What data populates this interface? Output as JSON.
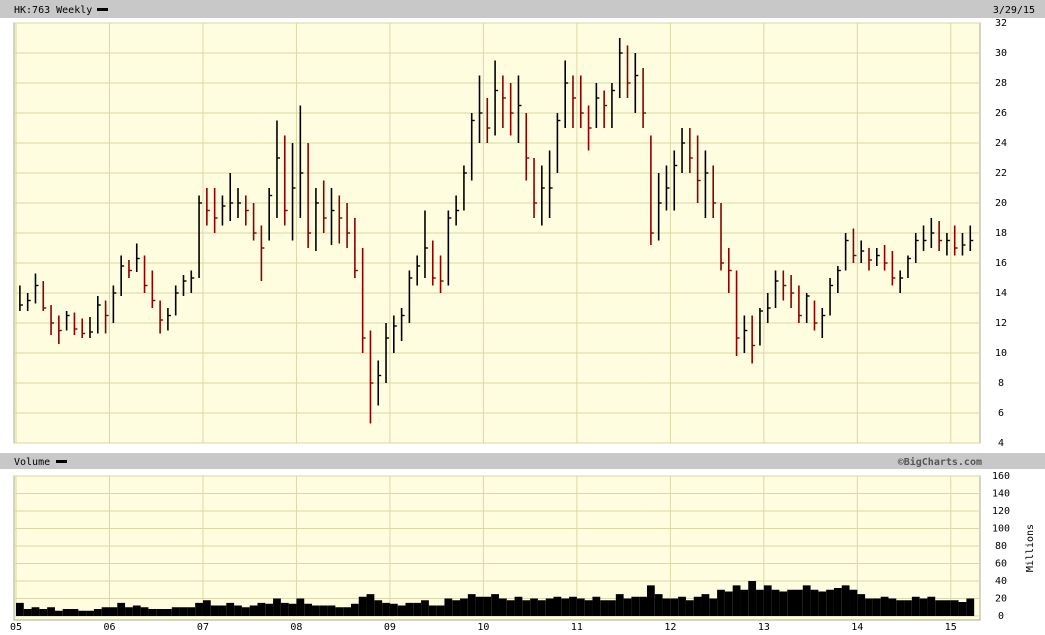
{
  "chart_data": [
    {
      "type": "hlc",
      "title": "HK:763 Weekly",
      "date": "3/29/15",
      "up_color": "#000000",
      "down_color": "#8b0000",
      "ylim": [
        4,
        32
      ],
      "yticks": [
        4,
        6,
        8,
        10,
        12,
        14,
        16,
        18,
        20,
        22,
        24,
        26,
        28,
        30,
        32
      ],
      "grid": true,
      "high": [
        14.5,
        14,
        15.3,
        14.8,
        13.2,
        12.5,
        12.8,
        12.7,
        12.3,
        12.4,
        13.8,
        13.5,
        14.5,
        16.5,
        16.2,
        17.3,
        16.5,
        15.5,
        13.5,
        13,
        14.5,
        15.2,
        15.5,
        20.5,
        21,
        21,
        20.5,
        22,
        21,
        20.5,
        20,
        18.5,
        21,
        25.5,
        24.5,
        24,
        26.5,
        24,
        21,
        21.5,
        21,
        20.5,
        20,
        19,
        17,
        11.5,
        9.5,
        12,
        12.5,
        13,
        15.5,
        16.5,
        19.5,
        17.5,
        16.5,
        19.5,
        20.5,
        22.5,
        26,
        28.5,
        27,
        29.5,
        28.5,
        28,
        28.5,
        26,
        23,
        22.5,
        23.5,
        26,
        29.5,
        28.5,
        28.5,
        26.5,
        28,
        27.5,
        28,
        31,
        30.5,
        30,
        29,
        24.5,
        22,
        22.5,
        23.5,
        25,
        25,
        24.5,
        23.5,
        22.5,
        20,
        17,
        15.5,
        12.5,
        12.5,
        13,
        14,
        15.5,
        15.5,
        15.2,
        14.5,
        14,
        13.5,
        13,
        15,
        15.8,
        18,
        18.3,
        17.5,
        17,
        17,
        17.2,
        16.8,
        15.5,
        16.5,
        18,
        18.5,
        19,
        18.8,
        18,
        18.5,
        18,
        18.5
      ],
      "low": [
        12.8,
        12.8,
        13.3,
        12.8,
        11.2,
        10.6,
        11.5,
        11.2,
        11,
        11,
        11.3,
        11.3,
        12,
        13.8,
        15,
        15.4,
        14,
        13,
        11.3,
        11.5,
        12.5,
        13.8,
        14,
        15,
        18.5,
        18,
        18.5,
        18.8,
        19,
        18.5,
        17.5,
        14.8,
        17.5,
        19,
        18.5,
        17.5,
        19,
        17,
        16.8,
        18,
        17.2,
        17.3,
        17,
        15,
        10,
        5.3,
        6.5,
        8,
        10,
        10.8,
        12,
        14.5,
        15,
        14.5,
        14,
        14.5,
        18.5,
        19.5,
        21.5,
        24,
        24,
        24.5,
        25,
        24.5,
        24,
        21.5,
        19,
        18.5,
        19,
        22,
        25,
        25,
        25,
        23.5,
        25,
        25,
        25,
        27,
        27,
        26,
        25,
        17.2,
        17.5,
        19.5,
        19.5,
        22,
        22,
        20,
        19,
        19,
        15.5,
        14,
        9.8,
        10,
        9.3,
        10.5,
        12,
        13,
        13.5,
        13,
        12,
        12,
        11.5,
        11,
        12.5,
        14,
        15.5,
        16,
        16,
        15.5,
        15.8,
        15.5,
        14.5,
        14,
        15,
        16,
        16.8,
        17,
        16.8,
        16.5,
        16.5,
        16.5,
        16.8
      ],
      "close": [
        13.2,
        13.5,
        14.5,
        13,
        12,
        11.5,
        12.5,
        11.6,
        11.3,
        11.4,
        13.2,
        12.5,
        14,
        15.8,
        15.5,
        16.3,
        14.5,
        13.5,
        12.2,
        12.5,
        14,
        14.8,
        15,
        20,
        19.5,
        19,
        19.8,
        20,
        20,
        19.5,
        18,
        17,
        20.5,
        23,
        19.5,
        21,
        22,
        18,
        20,
        19,
        19.5,
        19,
        18,
        15.5,
        11,
        8,
        8.5,
        11,
        11.8,
        12.5,
        15,
        15.8,
        17,
        15,
        14.8,
        19,
        19.5,
        22,
        25.5,
        26,
        25,
        27.5,
        27,
        26,
        26.5,
        23,
        20,
        21,
        21,
        25.5,
        28,
        27,
        26,
        25,
        27,
        26.5,
        27.5,
        30,
        28,
        28.5,
        26,
        18,
        20,
        21,
        22.5,
        24,
        23,
        21.5,
        22,
        20,
        16,
        15.5,
        11,
        11.5,
        10.5,
        12.8,
        13,
        14.8,
        14.5,
        14,
        12.5,
        13.8,
        12,
        12.5,
        14.5,
        15.5,
        17.5,
        16.5,
        16.8,
        16.2,
        16.5,
        16,
        15,
        15,
        16.3,
        17.5,
        17.5,
        18,
        17.5,
        17.5,
        17,
        17.2,
        17.5
      ]
    },
    {
      "type": "bar",
      "title": "Volume",
      "source": "©BigCharts.com",
      "y_label": "Millions",
      "color": "#000000",
      "ylim": [
        0,
        160
      ],
      "yticks": [
        0,
        20,
        40,
        60,
        80,
        100,
        120,
        140,
        160
      ],
      "grid": true,
      "categories": [
        "05",
        null,
        null,
        null,
        null,
        null,
        null,
        null,
        null,
        null,
        null,
        null,
        "06",
        null,
        null,
        null,
        null,
        null,
        null,
        null,
        null,
        null,
        null,
        null,
        "07",
        null,
        null,
        null,
        null,
        null,
        null,
        null,
        null,
        null,
        null,
        null,
        "08",
        null,
        null,
        null,
        null,
        null,
        null,
        null,
        null,
        null,
        null,
        null,
        "09",
        null,
        null,
        null,
        null,
        null,
        null,
        null,
        null,
        null,
        null,
        null,
        "10",
        null,
        null,
        null,
        null,
        null,
        null,
        null,
        null,
        null,
        null,
        null,
        "11",
        null,
        null,
        null,
        null,
        null,
        null,
        null,
        null,
        null,
        null,
        null,
        "12",
        null,
        null,
        null,
        null,
        null,
        null,
        null,
        null,
        null,
        null,
        null,
        "13",
        null,
        null,
        null,
        null,
        null,
        null,
        null,
        null,
        null,
        null,
        null,
        "14",
        null,
        null,
        null,
        null,
        null,
        null,
        null,
        null,
        null,
        null,
        null,
        "15",
        null,
        null
      ],
      "values": [
        15,
        8,
        10,
        8,
        10,
        6,
        8,
        8,
        6,
        6,
        8,
        10,
        10,
        15,
        10,
        12,
        10,
        8,
        8,
        8,
        10,
        10,
        10,
        15,
        18,
        12,
        12,
        15,
        12,
        10,
        12,
        15,
        14,
        20,
        15,
        14,
        20,
        14,
        12,
        12,
        12,
        10,
        10,
        14,
        22,
        25,
        18,
        15,
        14,
        12,
        15,
        15,
        18,
        12,
        12,
        20,
        18,
        20,
        25,
        22,
        22,
        25,
        20,
        18,
        22,
        18,
        20,
        18,
        20,
        22,
        20,
        22,
        20,
        18,
        22,
        18,
        18,
        25,
        20,
        22,
        22,
        35,
        25,
        20,
        20,
        22,
        18,
        22,
        25,
        20,
        30,
        28,
        35,
        30,
        40,
        30,
        35,
        30,
        28,
        30,
        30,
        35,
        30,
        28,
        30,
        32,
        35,
        30,
        25,
        20,
        20,
        22,
        20,
        18,
        18,
        22,
        20,
        22,
        18,
        18,
        18,
        16,
        20
      ]
    }
  ]
}
